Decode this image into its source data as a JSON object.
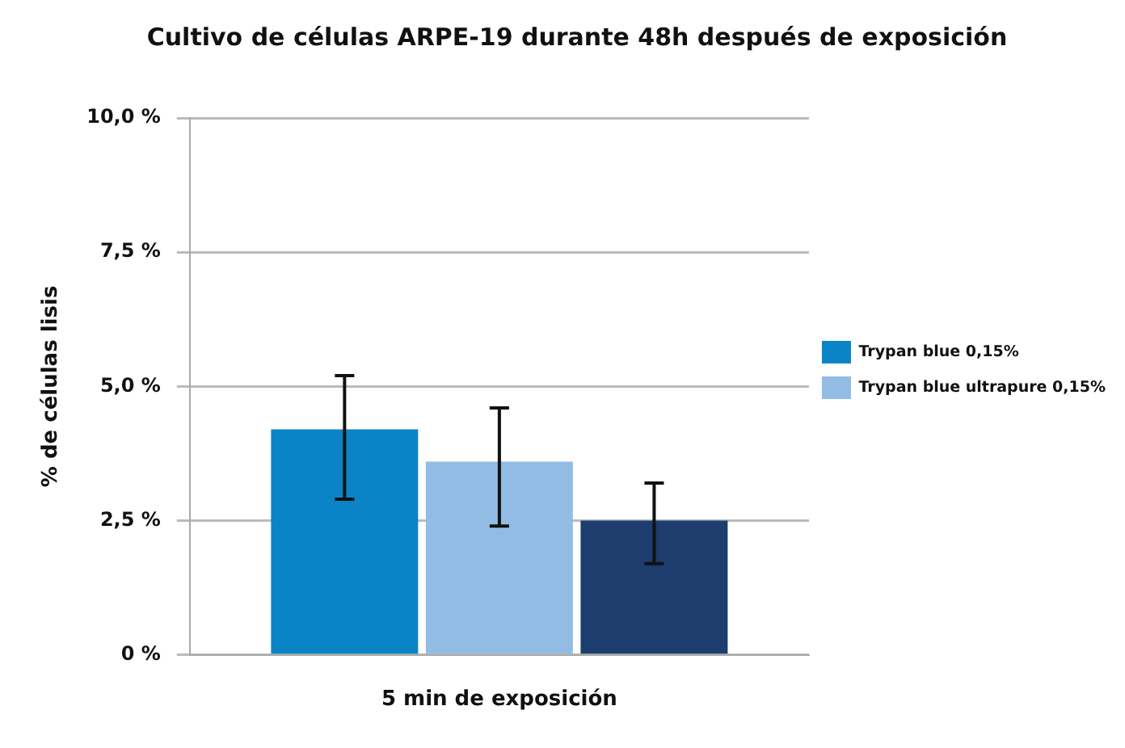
{
  "chart_data": {
    "type": "bar",
    "title": "Cultivo de células ARPE-19 durante 48h después de exposición",
    "ylabel": "% de células lisis",
    "categories": [
      "5 min de exposición"
    ],
    "series": [
      {
        "name": "Trypan blue 0,15%",
        "color": "#0a84c6",
        "values": [
          4.2
        ],
        "errors": [
          [
            2.9,
            5.2
          ]
        ]
      },
      {
        "name": "Trypan blue ultrapure 0,15%",
        "color": "#92bce3",
        "values": [
          3.6
        ],
        "errors": [
          [
            2.4,
            4.6
          ]
        ]
      },
      {
        "color": "#1c3d6e",
        "values": [
          2.5
        ],
        "errors": [
          [
            1.7,
            3.2
          ]
        ]
      }
    ],
    "ylim": [
      0,
      10
    ],
    "yticks": [
      {
        "value": 0,
        "label": "0 %"
      },
      {
        "value": 2.5,
        "label": "2,5 %"
      },
      {
        "value": 5,
        "label": "5,0 %"
      },
      {
        "value": 7.5,
        "label": "7,5 %"
      },
      {
        "value": 10,
        "label": "10,0 %"
      }
    ],
    "grid": "y",
    "legend": "right"
  }
}
